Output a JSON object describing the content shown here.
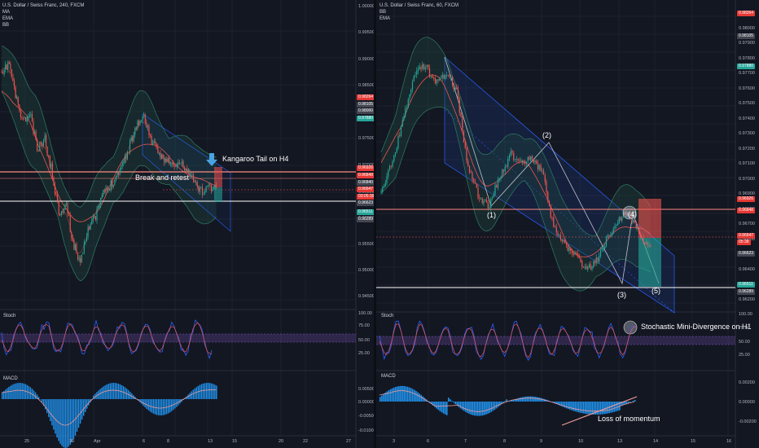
{
  "left_panel": {
    "title": "U.S. Dollar / Swiss Franc, 240, FXCM",
    "indicators": [
      "MA",
      "EMA",
      "BB"
    ],
    "annotations": {
      "kangaroo": "Kangaroo Tail on H4",
      "retest": "Break and retest"
    },
    "price_axis": [
      "1.00000",
      "0.99500",
      "0.99000",
      "0.98500",
      "0.98000",
      "0.97500",
      "0.97000",
      "0.96500",
      "0.96000",
      "0.95500",
      "0.95000",
      "0.94500"
    ],
    "price_tags": [
      {
        "text": "0.98264",
        "color": "#e53935"
      },
      {
        "text": "0.98105",
        "color": "#434651"
      },
      {
        "text": "0.98000",
        "color": "#434651"
      },
      {
        "text": "0.97880",
        "color": "#26a69a"
      },
      {
        "text": "0.96926",
        "color": "#e53935"
      },
      {
        "text": "0.96848",
        "color": "#e53935"
      },
      {
        "text": "0.96840",
        "color": "#434651"
      },
      {
        "text": "0.96647",
        "color": "#e53935"
      },
      {
        "text": "03:05:39",
        "color": "#e53935"
      },
      {
        "text": "0.96623",
        "color": "#434651"
      },
      {
        "text": "0.96511",
        "color": "#26a69a"
      },
      {
        "text": "0.96289",
        "color": "#434651"
      }
    ],
    "stoch": {
      "label": "Stoch",
      "axis": [
        "100.00",
        "75.00",
        "50.00",
        "25.00"
      ]
    },
    "macd": {
      "label": "MACD",
      "axis": [
        "0.00500",
        "0.00000",
        "-0.00500",
        "-0.01000"
      ]
    },
    "time_axis": [
      "25",
      "30",
      "Apr",
      "6",
      "8",
      "13",
      "15",
      "20",
      "22",
      "27"
    ]
  },
  "right_panel": {
    "title": "U.S. Dollar / Swiss Franc, 60, FXCM",
    "indicators": [
      "BB",
      "EMA"
    ],
    "wave_labels": [
      "(1)",
      "(2)",
      "(3)",
      "(4)",
      "(5)"
    ],
    "annotations": {
      "stoch_div": "Stochastic Mini-Divergence on H1",
      "momentum": "Loss of momentum"
    },
    "price_axis": [
      "0.98200",
      "0.98000",
      "0.97900",
      "0.97800",
      "0.97700",
      "0.97600",
      "0.97500",
      "0.97400",
      "0.97300",
      "0.97200",
      "0.97100",
      "0.97000",
      "0.96900",
      "0.96800",
      "0.96700",
      "0.96600",
      "0.96500",
      "0.96400",
      "0.96300",
      "0.96200"
    ],
    "price_tags": [
      {
        "text": "0.98264",
        "color": "#e53935"
      },
      {
        "text": "0.98105",
        "color": "#434651"
      },
      {
        "text": "0.97880",
        "color": "#26a69a"
      },
      {
        "text": "0.96926",
        "color": "#e53935"
      },
      {
        "text": "0.96848",
        "color": "#e53935"
      },
      {
        "text": "0.96647",
        "color": "#e53935"
      },
      {
        "text": "05:38",
        "color": "#e53935"
      },
      {
        "text": "0.96623",
        "color": "#434651"
      },
      {
        "text": "0.96511",
        "color": "#26a69a"
      },
      {
        "text": "0.96289",
        "color": "#434651"
      }
    ],
    "stoch": {
      "label": "Stoch",
      "axis": [
        "100.00",
        "75.00",
        "50.00",
        "25.00"
      ]
    },
    "macd": {
      "label": "MACD",
      "axis": [
        "0.00200",
        "0.00000",
        "-0.00200"
      ]
    },
    "time_axis": [
      "3",
      "6",
      "7",
      "8",
      "9",
      "10",
      "13",
      "14",
      "15",
      "16"
    ]
  },
  "colors": {
    "bull": "#26a69a",
    "bear": "#ef5350",
    "bg": "#131722",
    "band": "#1f4a3f",
    "channel": "#2962ff",
    "macd_hist": "#2196f3",
    "stoch_k": "#2962ff",
    "stoch_d": "#ef5350",
    "stoch_band": "#7e57c2"
  }
}
